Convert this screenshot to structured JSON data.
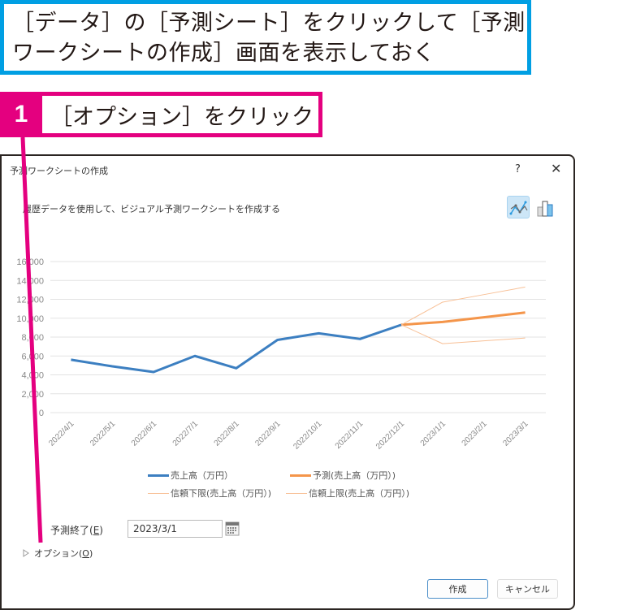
{
  "callout": {
    "text_line1": "［データ］の［予測シート］をクリックして［予測",
    "text_line2": "ワークシートの作成］画面を表示しておく"
  },
  "step": {
    "number": "1",
    "label": "［オプション］をクリック"
  },
  "dialog": {
    "title": "予測ワークシートの作成",
    "help_label": "?",
    "close_label": "✕",
    "description": "履歴データを使用して、ビジュアル予測ワークシートを作成する",
    "chart_type_line": "line-chart-icon",
    "chart_type_bar": "column-chart-icon",
    "forecast_end_label": "予測終了(",
    "forecast_end_key": "E",
    "forecast_end_suffix": ")",
    "forecast_end_value": "2023/3/1",
    "options_label": "オプション(",
    "options_key": "O",
    "options_suffix": ")",
    "create_button": "作成",
    "cancel_button": "キャンセル"
  },
  "colors": {
    "callout_blue": "#009fe3",
    "step_pink": "#e4007f",
    "series_blue": "#3c7fc1",
    "forecast_orange": "#f4954a",
    "bound_orange": "#f8c096"
  },
  "chart_data": {
    "type": "line",
    "title": "",
    "xlabel": "",
    "ylabel": "",
    "ylim": [
      0,
      16000
    ],
    "yticks": [
      "0",
      "2,000",
      "4,000",
      "6,000",
      "8,000",
      "10,000",
      "12,000",
      "14,000",
      "16,000"
    ],
    "grid": true,
    "legend_position": "bottom",
    "categories": [
      "2022/4/1",
      "2022/5/1",
      "2022/6/1",
      "2022/7/1",
      "2022/8/1",
      "2022/9/1",
      "2022/10/1",
      "2022/11/1",
      "2022/12/1",
      "2023/1/1",
      "2023/2/1",
      "2023/3/1"
    ],
    "series": [
      {
        "name": "売上高（万円）",
        "color": "#3c7fc1",
        "values": [
          5600,
          4900,
          4300,
          6000,
          4700,
          7700,
          8400,
          7800,
          9300,
          null,
          null,
          null
        ]
      },
      {
        "name": "予測(売上高（万円）)",
        "color": "#f4954a",
        "values": [
          null,
          null,
          null,
          null,
          null,
          null,
          null,
          null,
          9300,
          9600,
          10100,
          10600
        ]
      },
      {
        "name": "信頼下限(売上高（万円）)",
        "color": "#f8c096",
        "values": [
          null,
          null,
          null,
          null,
          null,
          null,
          null,
          null,
          9300,
          7300,
          7600,
          7900
        ]
      },
      {
        "name": "信頼上限(売上高（万円）)",
        "color": "#f8c096",
        "values": [
          null,
          null,
          null,
          null,
          null,
          null,
          null,
          null,
          9300,
          11700,
          12500,
          13300
        ]
      }
    ]
  }
}
